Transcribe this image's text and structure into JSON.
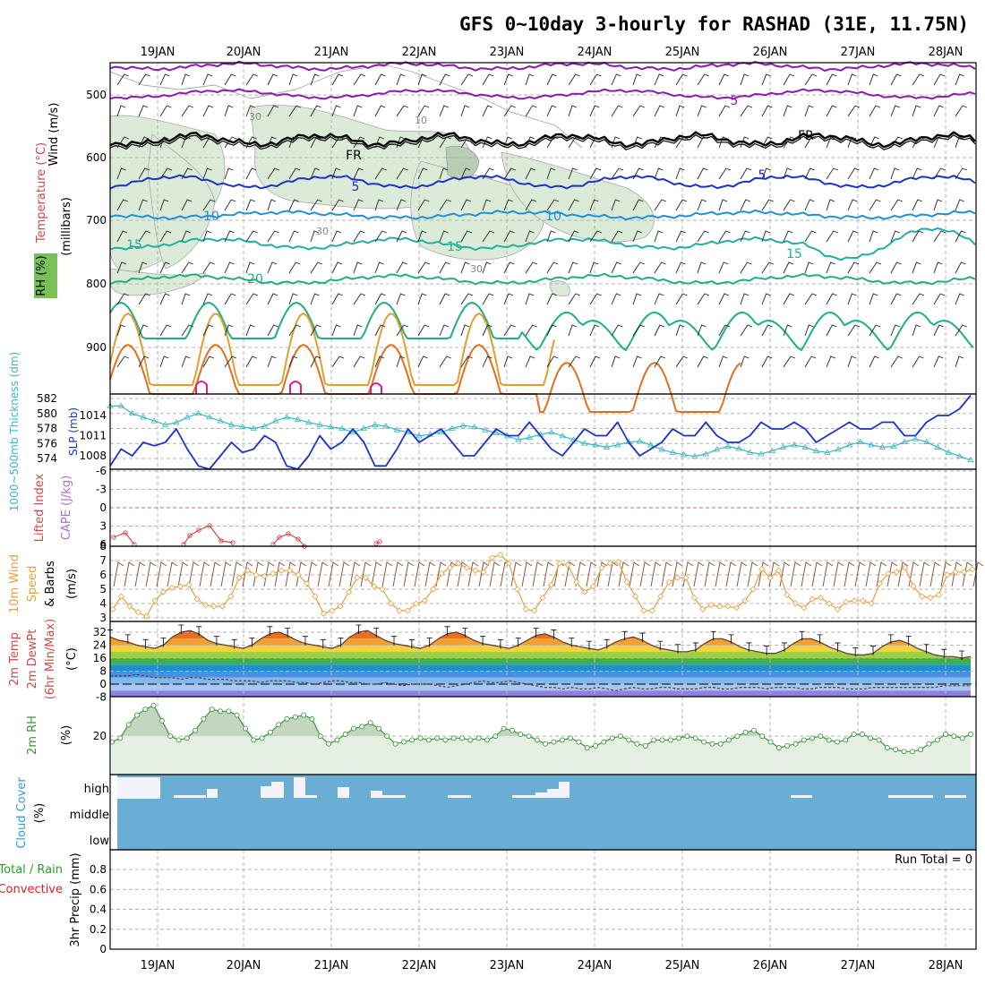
{
  "title": "GFS 0~10day 3-hourly for RASHAD (31E, 11.75N)",
  "dates": [
    "19JAN",
    "20JAN",
    "21JAN",
    "22JAN",
    "23JAN",
    "24JAN",
    "25JAN",
    "26JAN",
    "27JAN",
    "28JAN"
  ],
  "panels": {
    "upper_air": {
      "label_wind": "Wind (m/s)",
      "label_temp": "Temperature (°C)",
      "label_rh": "RH (%)",
      "label_mb": "(millibars)",
      "ticks": [
        "500",
        "600",
        "700",
        "800",
        "900"
      ],
      "contour_labels": [
        "5",
        "FR",
        "5",
        "10",
        "15",
        "20",
        "30",
        "10",
        "30",
        "30"
      ]
    },
    "thickness_slp": {
      "label_thickness": "1000~500mb Thickness (dm)",
      "label_slp": "SLP (mb)",
      "thickness_ticks": [
        "574",
        "576",
        "578",
        "580",
        "582"
      ],
      "slp_ticks": [
        "1008",
        "1011",
        "1014"
      ]
    },
    "stability": {
      "label_li": "Lifted Index",
      "label_cape": "CAPE (J/kg)",
      "ticks": [
        "-6",
        "-3",
        "0",
        "3",
        "6"
      ]
    },
    "wind10m": {
      "label_1": "10m Wind",
      "label_2": "Speed",
      "label_3": "& Barbs",
      "label_unit": "(m/s)",
      "ticks": [
        "3",
        "4",
        "5",
        "6",
        "7"
      ]
    },
    "temperature": {
      "label_1": "2m Temp",
      "label_2": "2m DewPt",
      "label_3": "(6hr Min/Max)",
      "label_unit": "(°C)",
      "ticks": [
        "32",
        "24",
        "16",
        "8",
        "0",
        "-8"
      ]
    },
    "rh2m": {
      "label": "2m RH",
      "label_unit": "(%)",
      "ticks": [
        "20"
      ]
    },
    "cloud": {
      "label": "Cloud Cover",
      "label_unit": "(%)",
      "rows": [
        "high",
        "middle",
        "low"
      ]
    },
    "precip": {
      "label_1": "3hr Precip (mm)",
      "label_total": "Total / Rain",
      "label_conv": "Convective",
      "run_total": "Run Total = 0",
      "ticks": [
        "0",
        "0.2",
        "0.4",
        "0.6",
        "0.8"
      ]
    }
  },
  "colors": {
    "rh_shade": "#dcebd8",
    "slp": "#1c34c8",
    "thickness": "#38b8c0",
    "li": "#d04848",
    "cape": "#b070c8",
    "wind_speed": "#e8a040",
    "barb": "#8a5a3a",
    "rh2m": "#3a9a3a",
    "cloud": "#6aaed6",
    "precip_total": "#28a028",
    "precip_conv": "#e02020"
  },
  "chart_data": [
    {
      "type": "line",
      "title": "1000~500mb Thickness (dm) / SLP (mb)",
      "x": [
        "18 12Z",
        "18 15Z",
        "18 18Z",
        "18 21Z",
        "19 00Z",
        "19 03Z",
        "19 06Z",
        "19 09Z",
        "19 12Z",
        "19 15Z",
        "19 18Z",
        "19 21Z",
        "20 00Z",
        "20 03Z",
        "20 06Z",
        "20 09Z",
        "20 12Z",
        "20 15Z",
        "20 18Z",
        "20 21Z",
        "21 00Z",
        "21 03Z",
        "21 06Z",
        "21 09Z",
        "21 12Z",
        "21 15Z",
        "21 18Z",
        "21 21Z",
        "22 00Z",
        "22 03Z",
        "22 06Z",
        "22 09Z",
        "22 12Z",
        "22 15Z",
        "22 18Z",
        "22 21Z",
        "23 00Z",
        "23 03Z",
        "23 06Z",
        "23 09Z",
        "23 12Z",
        "23 15Z",
        "23 18Z",
        "23 21Z",
        "24 00Z",
        "24 03Z",
        "24 06Z",
        "24 09Z",
        "24 12Z",
        "24 15Z",
        "24 18Z",
        "24 21Z",
        "25 00Z",
        "25 03Z",
        "25 06Z",
        "25 09Z",
        "25 12Z",
        "25 15Z",
        "25 18Z",
        "25 21Z",
        "26 00Z",
        "26 03Z",
        "26 06Z",
        "26 09Z",
        "26 12Z",
        "26 15Z",
        "26 18Z",
        "26 21Z",
        "27 00Z",
        "27 03Z",
        "27 06Z",
        "27 09Z",
        "27 12Z",
        "27 15Z",
        "27 18Z",
        "27 21Z",
        "28 00Z",
        "28 03Z",
        "28 06Z"
      ],
      "series": [
        {
          "name": "SLP (mb)",
          "values": [
            1006.5,
            1009,
            1008,
            1010,
            1009.5,
            1010,
            1012,
            1009,
            1006.5,
            1006,
            1008,
            1010,
            1008.5,
            1009,
            1011,
            1010,
            1006.5,
            1006,
            1008,
            1011,
            1009,
            1010,
            1012,
            1010,
            1006.5,
            1006.5,
            1009,
            1012,
            1010,
            1011,
            1012,
            1010,
            1008,
            1008,
            1010,
            1012,
            1011,
            1011,
            1013,
            1011,
            1009,
            1008,
            1010,
            1012,
            1011,
            1011,
            1013,
            1010,
            1008,
            1009,
            1010,
            1012,
            1011,
            1011,
            1013,
            1011,
            1010,
            1010,
            1011,
            1013,
            1012,
            1012,
            1013,
            1012,
            1010,
            1011,
            1012,
            1013,
            1012,
            1012,
            1013,
            1013,
            1011,
            1011,
            1013,
            1014,
            1014,
            1015,
            1017
          ]
        },
        {
          "name": "1000~500mb Thickness (dm)",
          "values": [
            581,
            581,
            580,
            579.5,
            579,
            578.5,
            578.8,
            579.5,
            580,
            579.5,
            579,
            578.5,
            578.2,
            578,
            578.3,
            579,
            579.5,
            579.2,
            578.8,
            578.5,
            578.2,
            578,
            577.5,
            578,
            578.5,
            578.3,
            577.8,
            577.5,
            577,
            577.2,
            577.5,
            578,
            578.4,
            578.2,
            577.8,
            577.4,
            577,
            576.5,
            576.8,
            577.2,
            577.5,
            577,
            576.5,
            576,
            575.8,
            575.5,
            575.8,
            576.2,
            576.3,
            575.8,
            575.2,
            574.8,
            574.5,
            574.3,
            574.6,
            575.2,
            575.6,
            575.3,
            574.8,
            574.6,
            575,
            575.5,
            575.8,
            575.5,
            575,
            574.8,
            575.2,
            575.8,
            576.2,
            575.8,
            575.5,
            575.6,
            576.2,
            576.6,
            576.2,
            575.5,
            574.8,
            574.3,
            573.8
          ]
        }
      ],
      "ylim": [
        573,
        582
      ]
    },
    {
      "type": "line",
      "title": "Lifted Index",
      "x": [
        "18 12Z",
        "18 15Z",
        "18 18Z",
        "19 12Z",
        "19 15Z",
        "19 18Z",
        "19 21Z",
        "20 00Z",
        "20 12Z",
        "20 15Z",
        "20 18Z",
        "21 12Z",
        "22 12Z"
      ],
      "series": [
        {
          "name": "Lifted Index",
          "values": [
            4.5,
            3.5,
            5.0,
            4.5,
            3.2,
            2.8,
            4.5,
            5.2,
            4.8,
            4.0,
            4.5,
            6.5,
            6.2
          ]
        }
      ],
      "ylim": [
        6,
        -6
      ]
    },
    {
      "type": "line",
      "title": "10m Wind Speed & Barbs (m/s)",
      "series": [
        {
          "name": "10m Wind Speed",
          "values": [
            3.6,
            4.5,
            3.8,
            3.4,
            3.1,
            4.2,
            4.8,
            5.1,
            5.2,
            5.3,
            4.3,
            3.9,
            3.8,
            3.8,
            4.5,
            5.8,
            6.3,
            6.0,
            5.9,
            6.1,
            6.3,
            6.3,
            6.0,
            5.4,
            4.5,
            3.3,
            3.5,
            3.8,
            4.8,
            5.8,
            5.8,
            5.2,
            5.0,
            4.0,
            3.5,
            3.5,
            4.0,
            4.2,
            5.0,
            6.1,
            6.5,
            6.8,
            6.5,
            6.3,
            6.2,
            7.2,
            7.4,
            6.8,
            5.0,
            3.6,
            3.5,
            4.4,
            5.3,
            6.8,
            6.7,
            5.5,
            4.8,
            5.2,
            6.5,
            6.8,
            6.9,
            5.5,
            4.5,
            3.5,
            3.5,
            4.5,
            5.5,
            5.8,
            5.8,
            4.4,
            3.6,
            3.9,
            3.8,
            3.8,
            3.7,
            4.2,
            5.0,
            6.4,
            5.8,
            6.3,
            4.6,
            4.0,
            3.7,
            4.3,
            4.4,
            4.0,
            3.6,
            4.1,
            4.2,
            4.2,
            4.0,
            5.4,
            6.1,
            6.2,
            6.5,
            5.2,
            4.5,
            4.4,
            4.6,
            6.0,
            6.2,
            6.2,
            6.4
          ]
        }
      ],
      "ylim": [
        3,
        7.5
      ]
    },
    {
      "type": "line",
      "title": "2m Temp / 2m DewPt (°C)",
      "series": [
        {
          "name": "2m Temp",
          "values": [
            29,
            27,
            26,
            24,
            23,
            22,
            24,
            29,
            32,
            33,
            31,
            27,
            25,
            24,
            23,
            22,
            24,
            28,
            31,
            32,
            30,
            27,
            25,
            24,
            23,
            22,
            24,
            29,
            32,
            33,
            30,
            27,
            25,
            24,
            23,
            22,
            24,
            28,
            31,
            32,
            30,
            27,
            25,
            24,
            23,
            22,
            24,
            27,
            30,
            31,
            29,
            26,
            24,
            23,
            22,
            21,
            23,
            26,
            28,
            29,
            27,
            24,
            22,
            21,
            20,
            20,
            21,
            25,
            28,
            28,
            26,
            23,
            21,
            20,
            19,
            19,
            21,
            25,
            28,
            28,
            26,
            23,
            21,
            19,
            18,
            18,
            19,
            23,
            26,
            27,
            25,
            22,
            20,
            18,
            17,
            17,
            16,
            17
          ]
        },
        {
          "name": "2m DewPt",
          "values": [
            5,
            5,
            5,
            6,
            5,
            4,
            4,
            4,
            3,
            4,
            4,
            3,
            3,
            3,
            2,
            2,
            2,
            1,
            2,
            2,
            2,
            1,
            1,
            0,
            1,
            2,
            2,
            1,
            1,
            0,
            0,
            1,
            0,
            -1,
            0,
            0,
            0,
            -1,
            -2,
            -1,
            0,
            1,
            2,
            1,
            1,
            2,
            1,
            0,
            -1,
            -2,
            -2,
            -3,
            -2,
            -3,
            -3,
            -2,
            -3,
            -4,
            -3,
            -2,
            -3,
            -3,
            -2,
            -2,
            -3,
            -3,
            -3,
            -2,
            -2,
            -3,
            -3,
            -2,
            -2,
            -2,
            -3,
            -2,
            -2,
            -2,
            -3,
            -3,
            -2,
            -2,
            -2,
            -3,
            -3,
            -3,
            -2,
            -2,
            -2,
            -2,
            -2,
            -2,
            -2,
            -2,
            -1,
            -1,
            -1,
            -1
          ]
        }
      ],
      "ylim": [
        -12,
        36
      ]
    },
    {
      "type": "area",
      "title": "2m RH (%)",
      "series": [
        {
          "name": "2m RH",
          "values": [
            17,
            19,
            26,
            31,
            34,
            36,
            28,
            20,
            18,
            19,
            23,
            29,
            34,
            33,
            33,
            31,
            24,
            18,
            19,
            22,
            26,
            29,
            30,
            31,
            29,
            20,
            16,
            18,
            21,
            24,
            25,
            27,
            24,
            20,
            16,
            17,
            18,
            19,
            18,
            19,
            18,
            19,
            19,
            18,
            19,
            18,
            20,
            24,
            23,
            21,
            20,
            18,
            16,
            17,
            18,
            19,
            17,
            14,
            15,
            17,
            19,
            20,
            18,
            16,
            15,
            18,
            18,
            18,
            19,
            20,
            19,
            17,
            16,
            16,
            18,
            20,
            22,
            23,
            20,
            17,
            14,
            15,
            16,
            18,
            19,
            20,
            18,
            17,
            18,
            21,
            21,
            19,
            18,
            14,
            13,
            12,
            12,
            13,
            16,
            18,
            21,
            20,
            19,
            21
          ]
        }
      ],
      "ylim": [
        0,
        40
      ]
    },
    {
      "type": "area",
      "title": "3hr Precip (mm)",
      "series": [
        {
          "name": "Total / Rain",
          "values": [
            0
          ]
        },
        {
          "name": "Convective",
          "values": [
            0
          ]
        }
      ],
      "ylim": [
        0,
        1.0
      ]
    }
  ]
}
